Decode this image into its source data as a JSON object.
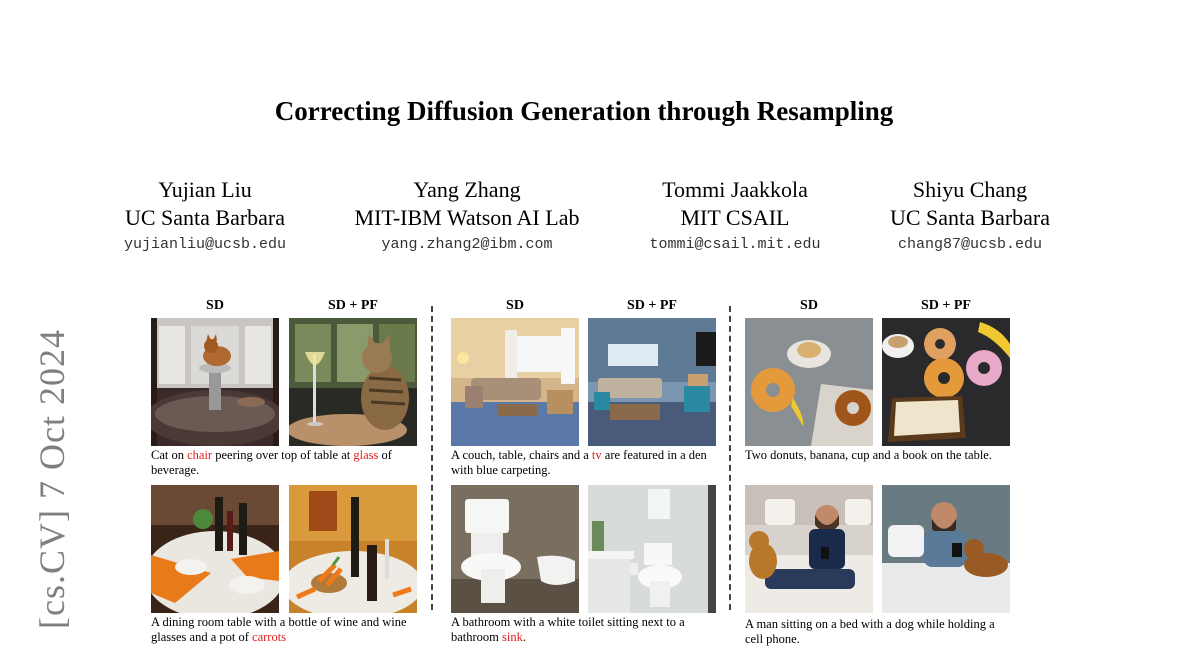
{
  "arxiv_stamp": "[cs.CV]  7 Oct 2024",
  "title": "Correcting Diffusion Generation through Resampling",
  "authors": [
    {
      "name": "Yujian Liu",
      "affiliation": "UC Santa Barbara",
      "email": "yujianliu@ucsb.edu"
    },
    {
      "name": "Yang Zhang",
      "affiliation": "MIT-IBM Watson AI Lab",
      "email": "yang.zhang2@ibm.com"
    },
    {
      "name": "Tommi Jaakkola",
      "affiliation": "MIT CSAIL",
      "email": "tommi@csail.mit.edu"
    },
    {
      "name": "Shiyu Chang",
      "affiliation": "UC Santa Barbara",
      "email": "chang87@ucsb.edu"
    }
  ],
  "figure": {
    "col_sd": "SD",
    "col_sdpf": "SD + PF",
    "captions": [
      {
        "pre": "Cat on ",
        "hl1": "chair",
        "mid": " peering over top of table at ",
        "hl2": "glass",
        "post": " of beverage."
      },
      {
        "pre": "A couch, table, chairs and a ",
        "hl1": "tv",
        "mid": " are featured in a den with blue carpeting.",
        "hl2": "",
        "post": ""
      },
      {
        "pre": "Two donuts, banana, cup and a book on the table.",
        "hl1": "",
        "mid": "",
        "hl2": "",
        "post": ""
      },
      {
        "pre": "A dining room table with a bottle of wine and wine glasses and a pot of ",
        "hl1": "carrots",
        "mid": "",
        "hl2": "",
        "post": ""
      },
      {
        "pre": "A bathroom with a white toilet sitting next to a bathroom ",
        "hl1": "sink",
        "mid": ".",
        "hl2": "",
        "post": ""
      },
      {
        "pre": "A man sitting on a bed with a dog while holding a cell phone.",
        "hl1": "",
        "mid": "",
        "hl2": "",
        "post": ""
      }
    ]
  }
}
